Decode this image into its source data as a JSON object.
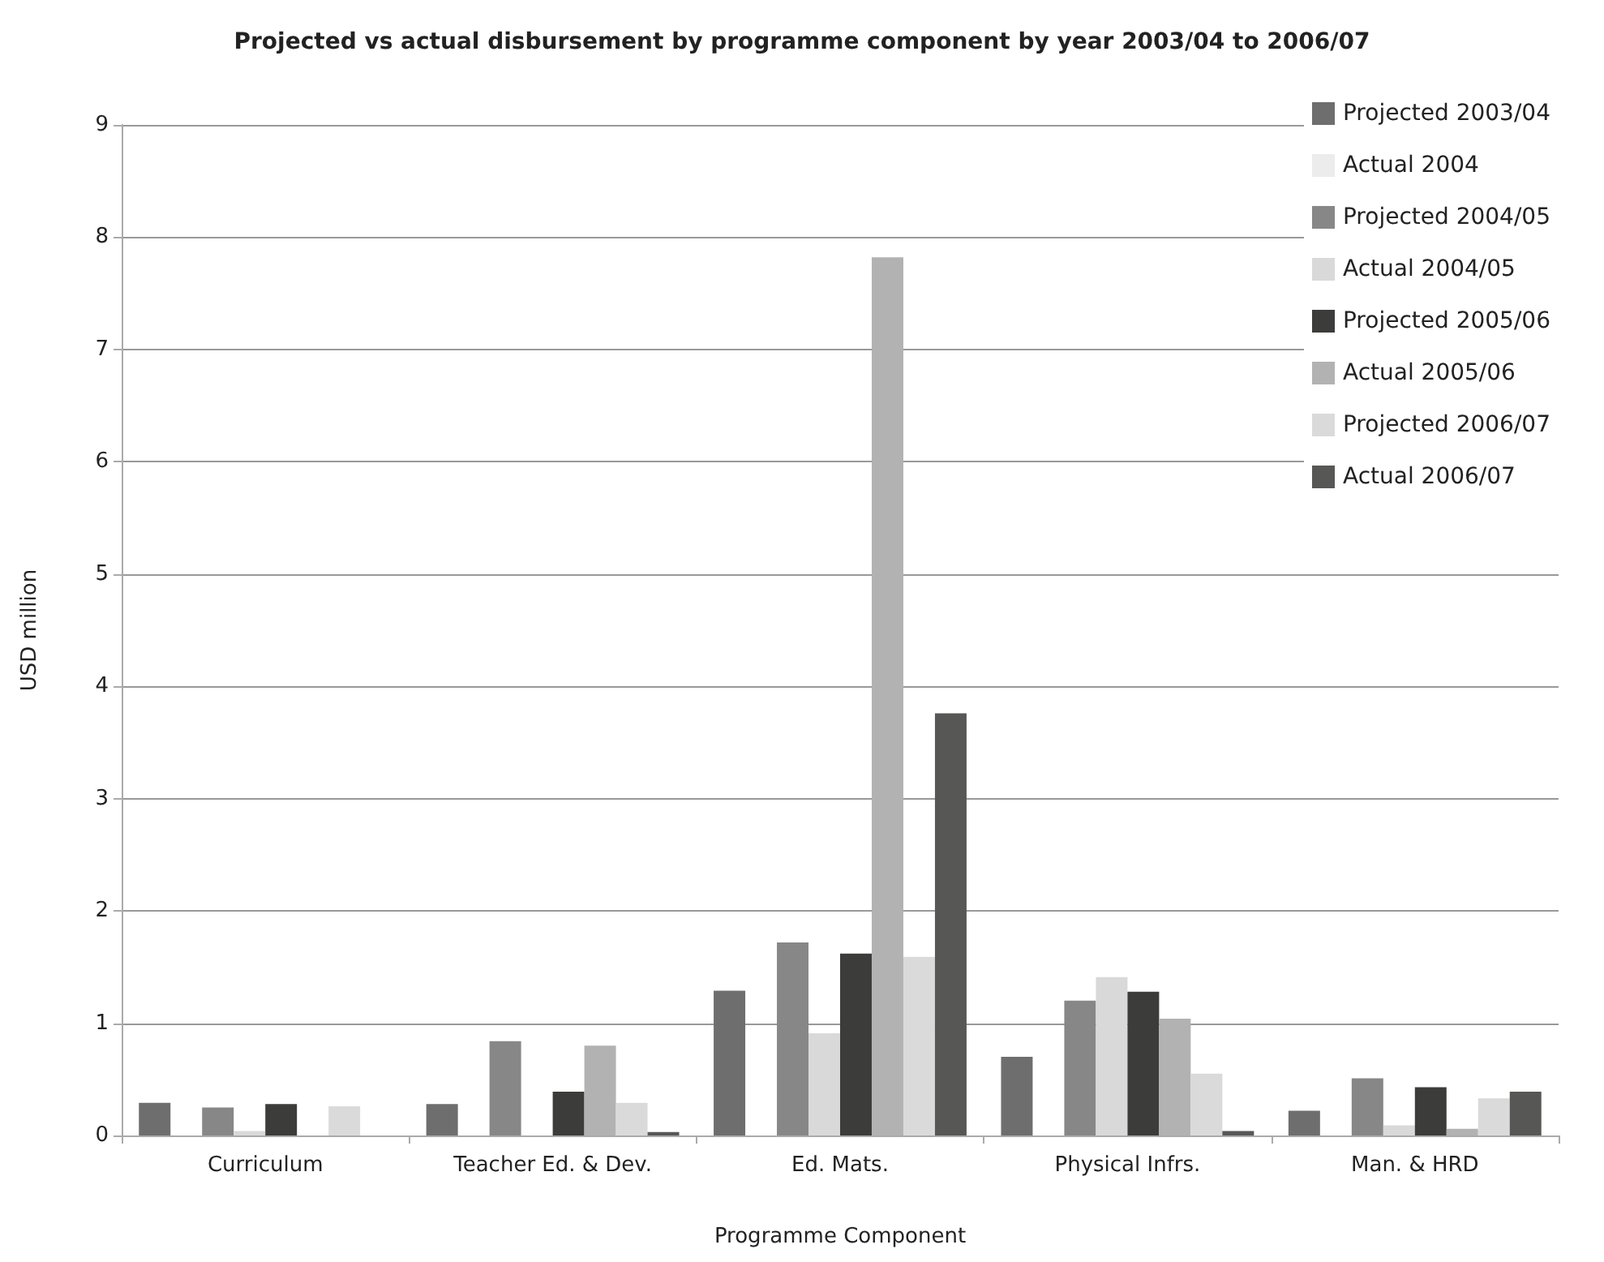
{
  "chart_data": {
    "type": "bar",
    "title": "Projected vs actual disbursement by programme component by year 2003/04 to 2006/07",
    "xlabel": "Programme Component",
    "ylabel": "USD million",
    "categories": [
      "Curriculum",
      "Teacher Ed. & Dev.",
      "Ed. Mats.",
      "Physical Infrs.",
      "Man. & HRD"
    ],
    "series": [
      {
        "name": "Projected 2003/04",
        "color": "#6e6e6e",
        "values": [
          0.29,
          0.28,
          1.29,
          0.7,
          0.22
        ]
      },
      {
        "name": "Actual 2004",
        "color": "#ececec",
        "values": [
          0,
          0,
          0,
          0,
          0
        ]
      },
      {
        "name": "Projected 2004/05",
        "color": "#878787",
        "values": [
          0.25,
          0.84,
          1.72,
          1.2,
          0.51
        ]
      },
      {
        "name": "Actual 2004/05",
        "color": "#d9d9d9",
        "values": [
          0.04,
          0,
          0.91,
          1.41,
          0.09
        ]
      },
      {
        "name": "Projected 2005/06",
        "color": "#3c3c3b",
        "values": [
          0.28,
          0.39,
          1.62,
          1.28,
          0.43
        ]
      },
      {
        "name": "Actual 2005/06",
        "color": "#b2b2b2",
        "values": [
          0,
          0.8,
          7.82,
          1.04,
          0.06
        ]
      },
      {
        "name": "Projected 2006/07",
        "color": "#dadada",
        "values": [
          0.26,
          0.29,
          1.59,
          0.55,
          0.33
        ]
      },
      {
        "name": "Actual 2006/07",
        "color": "#575756",
        "values": [
          0,
          0.03,
          3.76,
          0.04,
          0.39
        ]
      }
    ],
    "ylim": [
      0,
      9
    ],
    "yticks": [
      0,
      1,
      2,
      3,
      4,
      5,
      6,
      7,
      8,
      9
    ],
    "grid": "y",
    "legend": "top right"
  }
}
